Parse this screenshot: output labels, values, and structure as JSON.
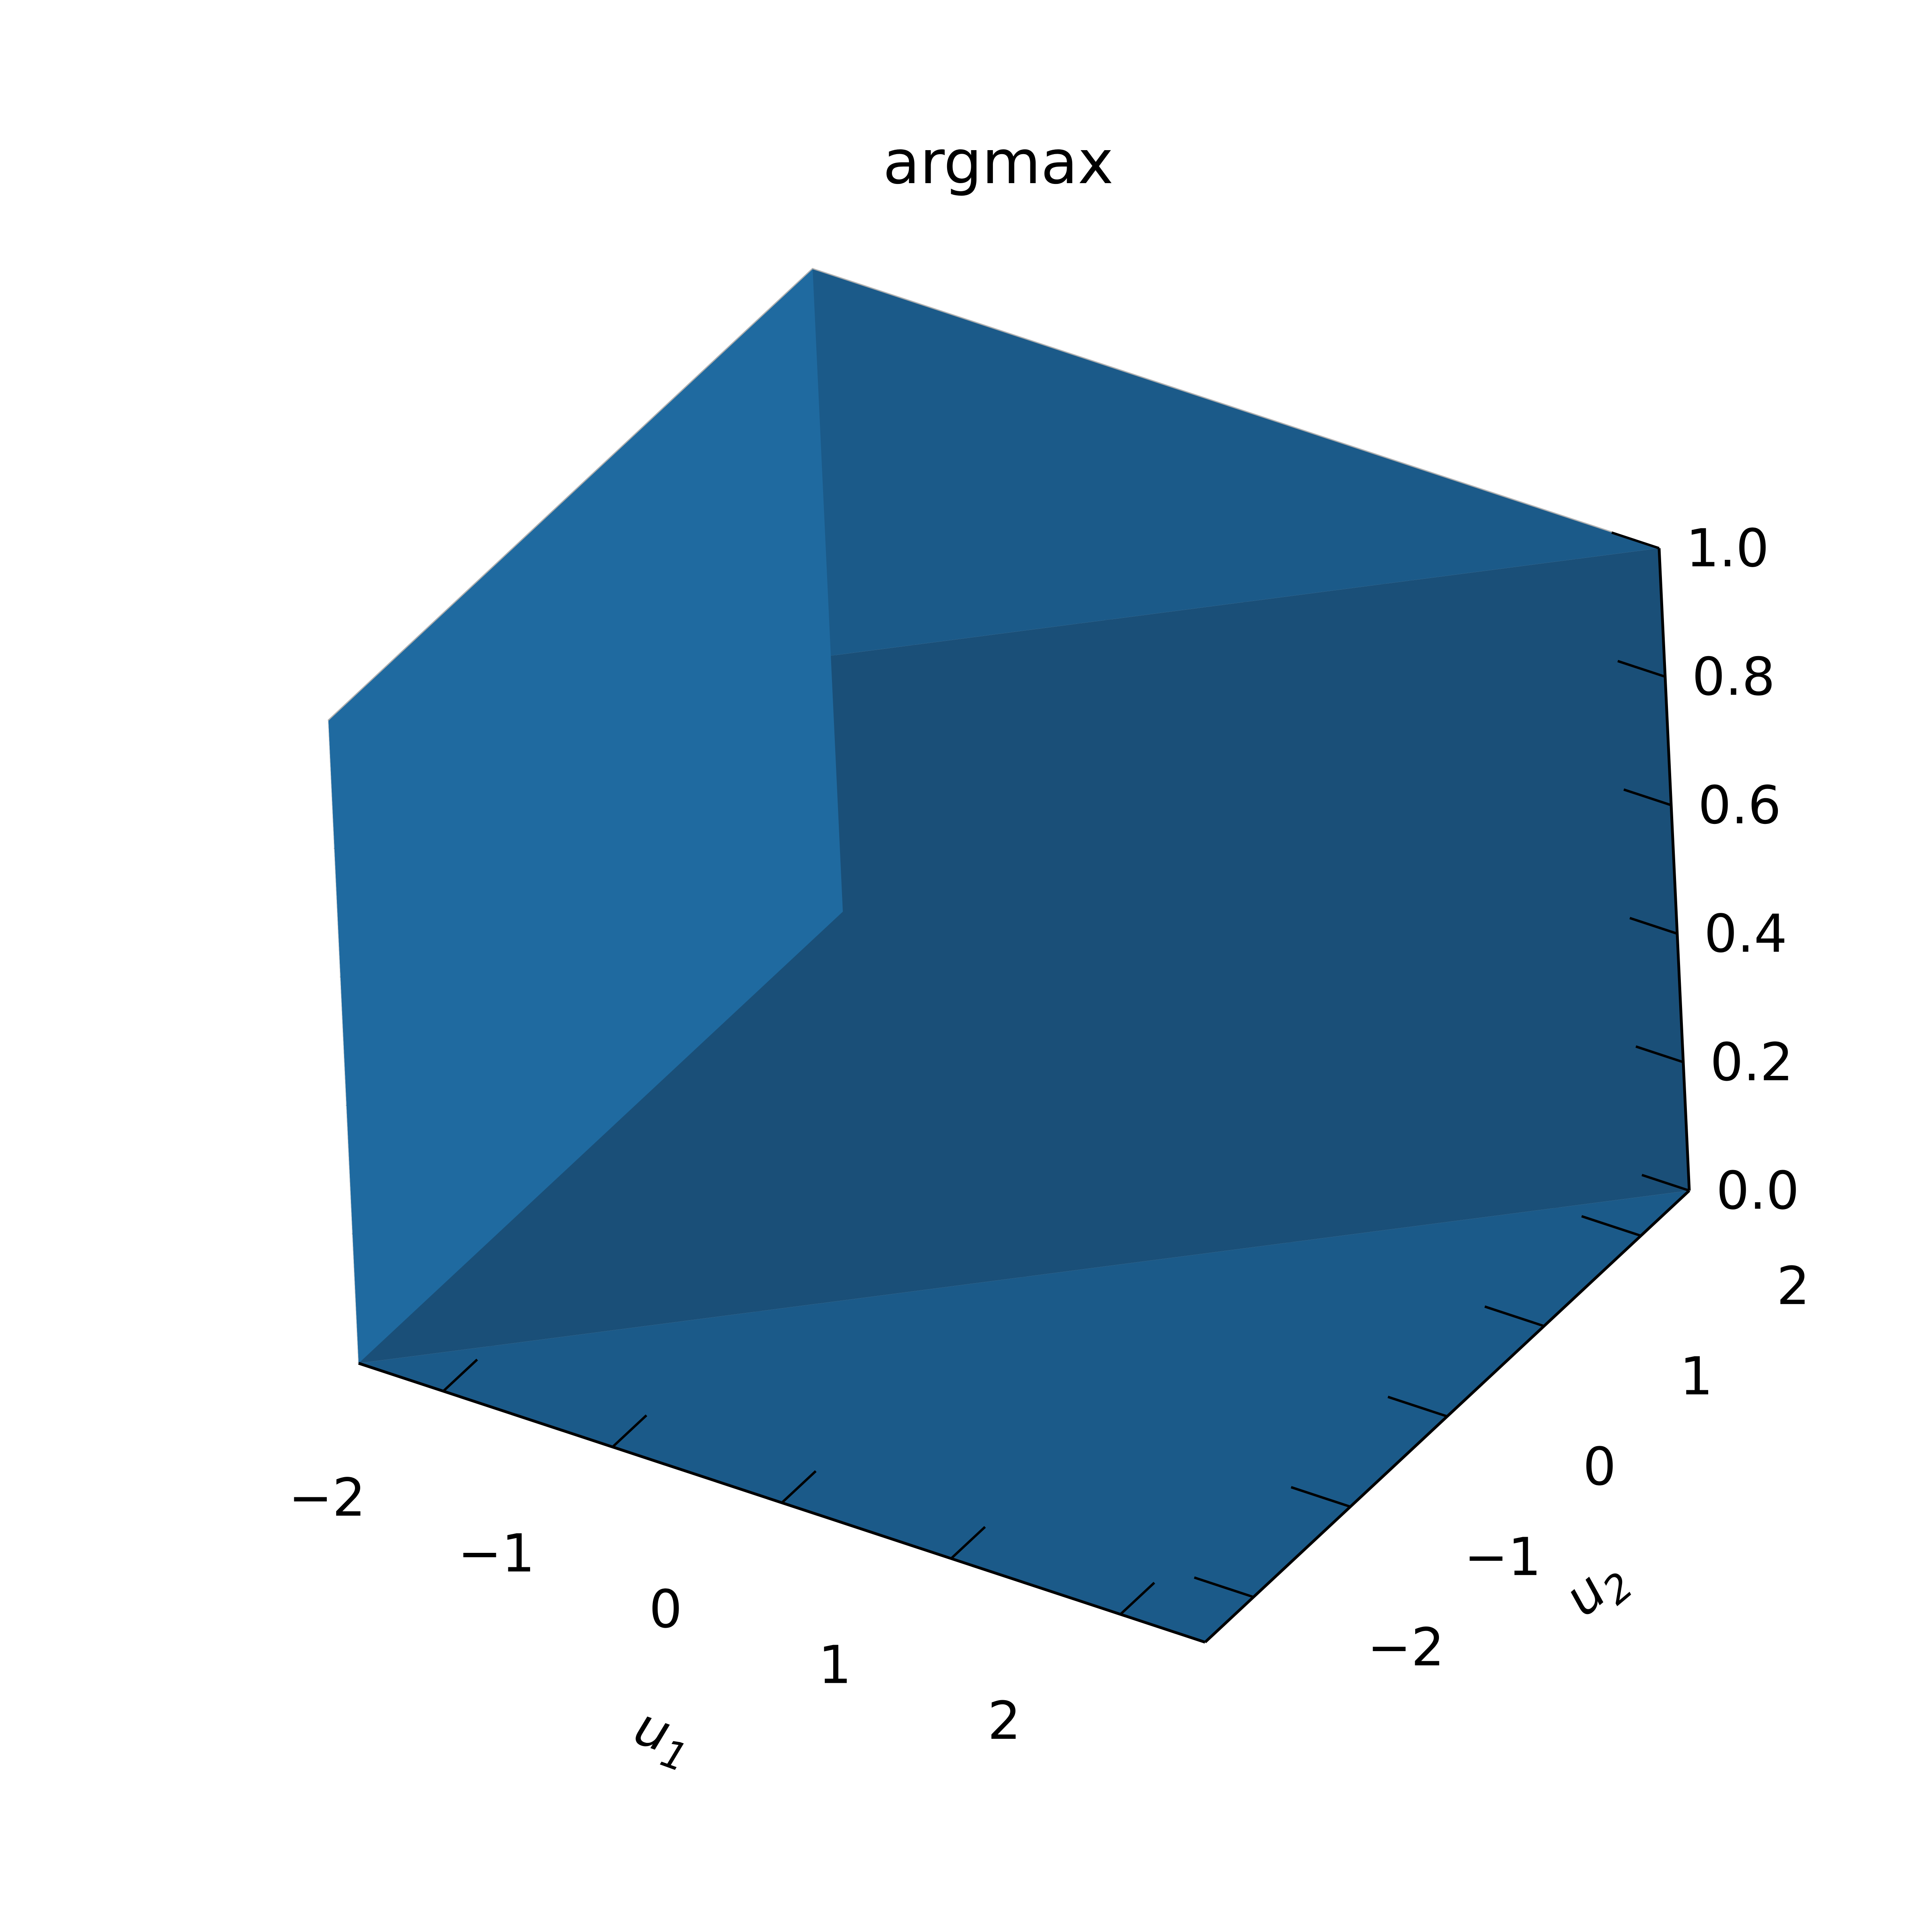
{
  "chart_data": {
    "type": "surface3d",
    "title": "argmax",
    "xlabel": "u_1",
    "ylabel": "u_2",
    "zlabel": "",
    "xlim": [
      -2.5,
      2.5
    ],
    "ylim": [
      -2.5,
      2.5
    ],
    "zlim": [
      0,
      1
    ],
    "xticks": [
      -2,
      -1,
      0,
      1,
      2
    ],
    "yticks": [
      -2,
      -1,
      0,
      1,
      2
    ],
    "zticks": [
      0.0,
      0.2,
      0.4,
      0.6,
      0.8,
      1.0
    ],
    "xtick_labels": [
      "−2",
      "−1",
      "0",
      "1",
      "2"
    ],
    "ytick_labels": [
      "−2",
      "−1",
      "0",
      "1",
      "2"
    ],
    "ztick_labels": [
      "0.0",
      "0.2",
      "0.4",
      "0.6",
      "0.8",
      "1.0"
    ],
    "surface": {
      "description_rule": "z = 1 where u_1 < u_2, else 0",
      "step_at": "u_1 = u_2",
      "z_low": 0,
      "z_high": 1,
      "domain": [
        -2.5,
        2.5
      ]
    },
    "grid": true,
    "colors": {
      "surface_front": "#1f6aa0",
      "surface_side": "#1a4f78",
      "surface_top": "#1b5a89",
      "pane_left": "#f6f6f6",
      "pane_right": "#f0f0f0",
      "pane_floor": "#ececec",
      "grid": "#b0b0b0",
      "axis": "#000000"
    }
  }
}
